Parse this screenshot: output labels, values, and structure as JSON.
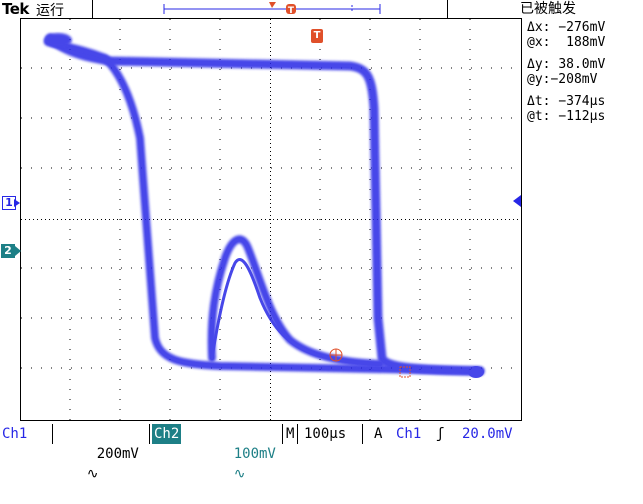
{
  "header": {
    "brand": "Tek",
    "run_state": "运行",
    "trigger_state": "已被触发",
    "trigger_marker_label": "T"
  },
  "readout": {
    "dx_label": "Δx:",
    "dx_value": "−276mV",
    "atx_label": "@x:",
    "atx_value": "188mV",
    "dy_label": "Δy:",
    "dy_value": "38.0mV",
    "aty_label": "@y:",
    "aty_value": "−208mV",
    "dt_label": "Δt:",
    "dt_value": "−374µs",
    "att_label": "@t:",
    "att_value": "−112µs"
  },
  "markers": {
    "ch1": "1",
    "ch2": "2"
  },
  "footer": {
    "ch1_label": "Ch1",
    "ch1_scale": "200mV",
    "ch1_coupling_icon": "∿",
    "ch2_label": "Ch2",
    "ch2_scale": "100mV",
    "ch2_coupling_icon": "∿",
    "timebase_label": "M",
    "timebase_value": "100µs",
    "trigger_mode": "A",
    "trigger_source": "Ch1",
    "trigger_slope_icon": "ʃ",
    "trigger_level": "20.0mV"
  },
  "colors": {
    "trace": "#2727e6",
    "cursor": "#e0502a",
    "ch2": "#1d7f86",
    "grid": "#000000"
  }
}
